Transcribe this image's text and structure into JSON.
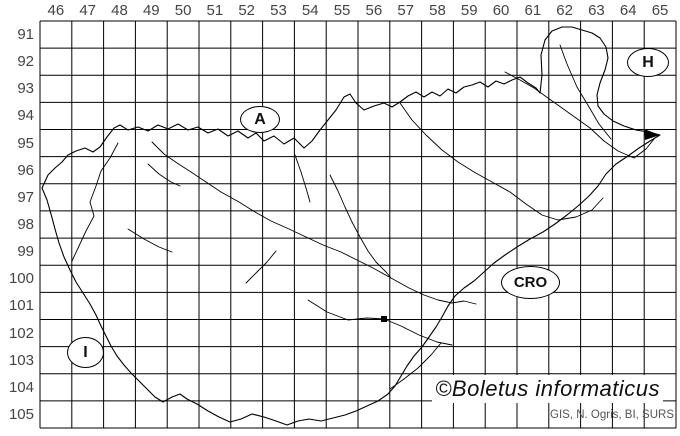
{
  "grid": {
    "column_labels": [
      "46",
      "47",
      "48",
      "49",
      "50",
      "51",
      "52",
      "53",
      "54",
      "55",
      "56",
      "57",
      "58",
      "59",
      "60",
      "61",
      "62",
      "63",
      "64",
      "65"
    ],
    "row_labels": [
      "91",
      "92",
      "93",
      "94",
      "95",
      "96",
      "97",
      "98",
      "99",
      "100",
      "101",
      "102",
      "103",
      "104",
      "105"
    ]
  },
  "country_labels": {
    "austria": "A",
    "hungary": "H",
    "croatia": "CRO",
    "italy": "I"
  },
  "credits": {
    "watermark": "©Boletus informaticus",
    "sources": "GIS, N. Ogris, BI, SURS"
  },
  "colors": {
    "background": "#ffffff",
    "grid_line": "#000000",
    "axis_label": "#454545",
    "map_line": "#000000",
    "watermark_text": "#111111",
    "sources_text": "#54545a"
  }
}
